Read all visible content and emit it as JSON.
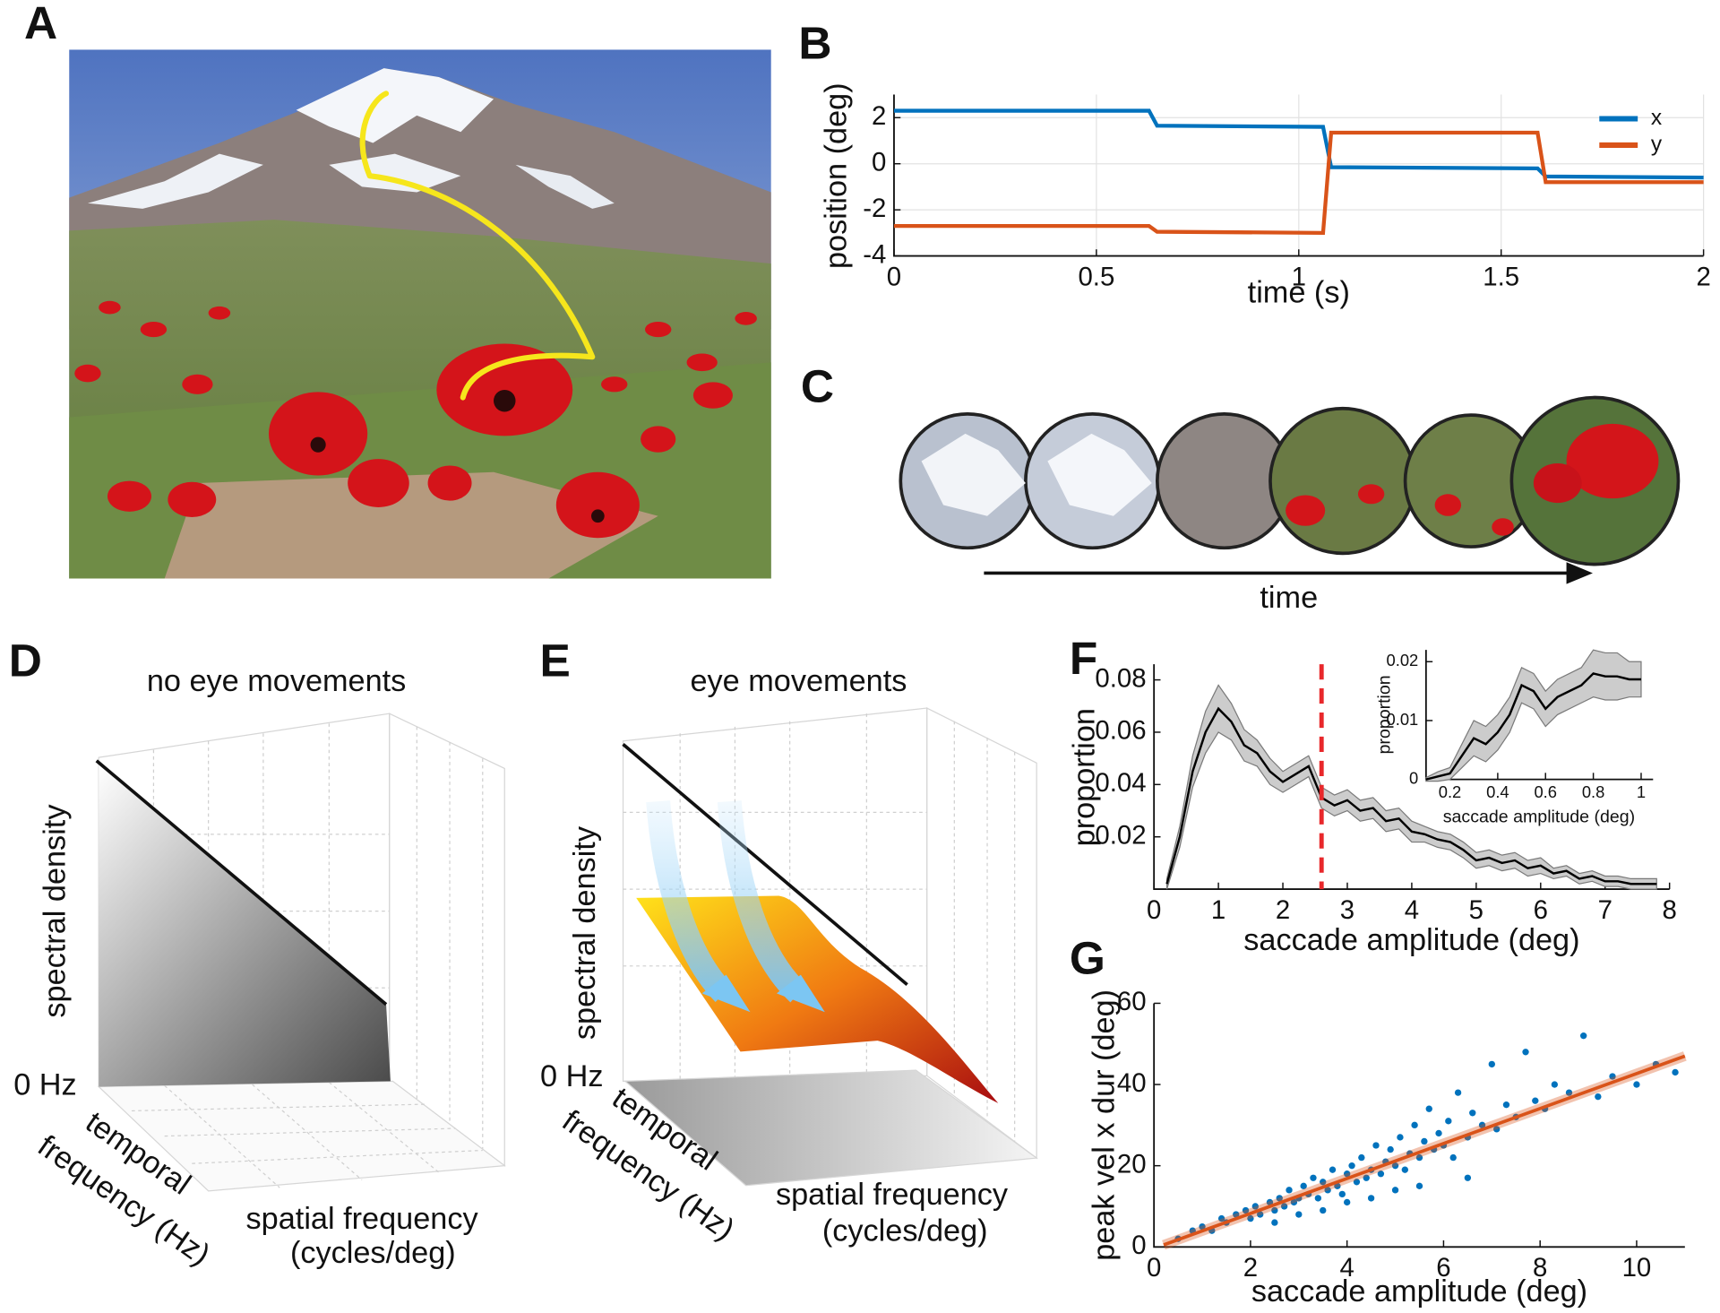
{
  "figure": {
    "panel_labels": [
      "A",
      "B",
      "C",
      "D",
      "E",
      "F",
      "G"
    ],
    "c_label": "time",
    "d": {
      "title": "no eye movements",
      "zlabel": "spectral density",
      "origin": "0 Hz",
      "ylabel": [
        "temporal",
        "frequency (Hz)"
      ],
      "xlabel": [
        "spatial frequency",
        "(cycles/deg)"
      ]
    },
    "e": {
      "title": "eye movements",
      "zlabel": "spectral density",
      "origin": "0 Hz",
      "ylabel": [
        "temporal",
        "frequency (Hz)"
      ],
      "xlabel": [
        "spatial frequency",
        "(cycles/deg)"
      ]
    }
  },
  "chart_data": [
    {
      "type": "line",
      "xlabel": "time (s)",
      "ylabel": "position (deg)",
      "x": [
        0,
        0.63,
        0.65,
        1.06,
        1.08,
        1.59,
        1.61,
        2
      ],
      "series": [
        {
          "name": "x",
          "color": "#0072bd",
          "values": [
            2.3,
            2.3,
            1.65,
            1.6,
            -0.15,
            -0.2,
            -0.55,
            -0.6
          ]
        },
        {
          "name": "y",
          "color": "#d95319",
          "values": [
            -2.7,
            -2.7,
            -2.95,
            -3.0,
            1.35,
            1.35,
            -0.8,
            -0.8
          ]
        }
      ],
      "xlim": [
        0,
        2
      ],
      "ylim": [
        -4,
        3
      ],
      "xticks": [
        0,
        0.5,
        1,
        1.5,
        2
      ],
      "yticks": [
        -4,
        -2,
        0,
        2
      ],
      "grid": true,
      "legend": "upper right"
    },
    {
      "type": "line",
      "xlabel": "saccade amplitude (deg)",
      "ylabel": "proportion",
      "x": [
        0.2,
        0.4,
        0.6,
        0.8,
        1.0,
        1.2,
        1.4,
        1.6,
        1.8,
        2.0,
        2.2,
        2.4,
        2.6,
        2.8,
        3.0,
        3.2,
        3.4,
        3.6,
        3.8,
        4.0,
        4.2,
        4.4,
        4.6,
        4.8,
        5.0,
        5.2,
        5.4,
        5.6,
        5.8,
        6.0,
        6.2,
        6.4,
        6.6,
        6.8,
        7.0,
        7.2,
        7.4,
        7.6,
        7.8
      ],
      "values": [
        0.002,
        0.02,
        0.045,
        0.06,
        0.069,
        0.064,
        0.055,
        0.052,
        0.045,
        0.041,
        0.044,
        0.047,
        0.035,
        0.032,
        0.034,
        0.03,
        0.031,
        0.026,
        0.027,
        0.022,
        0.021,
        0.019,
        0.018,
        0.015,
        0.011,
        0.012,
        0.01,
        0.011,
        0.008,
        0.009,
        0.006,
        0.007,
        0.004,
        0.005,
        0.003,
        0.003,
        0.002,
        0.002,
        0.002
      ],
      "errors": [
        0.002,
        0.004,
        0.006,
        0.008,
        0.009,
        0.007,
        0.006,
        0.005,
        0.005,
        0.004,
        0.004,
        0.004,
        0.004,
        0.004,
        0.004,
        0.004,
        0.004,
        0.004,
        0.004,
        0.004,
        0.003,
        0.003,
        0.003,
        0.003,
        0.003,
        0.003,
        0.003,
        0.003,
        0.003,
        0.003,
        0.002,
        0.002,
        0.002,
        0.002,
        0.002,
        0.002,
        0.002,
        0.002,
        0.002
      ],
      "color": "#000000",
      "band_color": "#cccccc",
      "threshold": 2.6,
      "threshold_color": "#e8282b",
      "xlim": [
        0,
        8
      ],
      "ylim": [
        0,
        0.086
      ],
      "xticks": [
        0,
        1,
        2,
        3,
        4,
        5,
        6,
        7,
        8
      ],
      "yticks": [
        0.02,
        0.04,
        0.06,
        0.08
      ]
    },
    {
      "type": "line",
      "xlabel": "saccade amplitude (deg)",
      "ylabel": "proportion",
      "x": [
        0.1,
        0.15,
        0.2,
        0.25,
        0.3,
        0.35,
        0.4,
        0.45,
        0.5,
        0.55,
        0.6,
        0.65,
        0.7,
        0.75,
        0.8,
        0.85,
        0.9,
        0.95,
        1.0
      ],
      "values": [
        0,
        0.0005,
        0.001,
        0.004,
        0.007,
        0.006,
        0.008,
        0.011,
        0.016,
        0.015,
        0.012,
        0.014,
        0.015,
        0.016,
        0.018,
        0.0175,
        0.0175,
        0.017,
        0.017
      ],
      "errors": [
        0.0003,
        0.0008,
        0.001,
        0.002,
        0.003,
        0.003,
        0.003,
        0.003,
        0.003,
        0.003,
        0.003,
        0.003,
        0.003,
        0.003,
        0.004,
        0.004,
        0.004,
        0.003,
        0.003
      ],
      "color": "#000000",
      "band_color": "#cccccc",
      "xlim": [
        0.1,
        1.05
      ],
      "ylim": [
        0,
        0.022
      ],
      "xticks": [
        0.2,
        0.4,
        0.6,
        0.8,
        1
      ],
      "yticks": [
        0,
        0.01,
        0.02
      ]
    },
    {
      "type": "scatter",
      "xlabel": "saccade amplitude (deg)",
      "ylabel": "peak vel x dur (deg)",
      "x": [
        0.5,
        0.8,
        1,
        1.2,
        1.4,
        1.5,
        1.7,
        1.9,
        2,
        2.1,
        2.2,
        2.4,
        2.5,
        2.6,
        2.7,
        2.8,
        2.9,
        3,
        3.1,
        3.2,
        3.3,
        3.4,
        3.5,
        3.6,
        3.7,
        3.8,
        3.9,
        4,
        4.1,
        4.2,
        4.3,
        4.4,
        4.5,
        4.6,
        4.7,
        4.8,
        4.9,
        5,
        5.1,
        5.2,
        5.3,
        5.4,
        5.5,
        5.6,
        5.7,
        5.8,
        5.9,
        6,
        6.1,
        6.2,
        6.3,
        6.5,
        6.6,
        6.8,
        7,
        7.1,
        7.3,
        7.5,
        7.7,
        7.9,
        8.1,
        8.3,
        8.6,
        8.9,
        9.2,
        9.5,
        10,
        10.4,
        10.8,
        3.5,
        4.5,
        5.5,
        6.5,
        2.5,
        3,
        4,
        5
      ],
      "values": [
        2,
        4,
        5,
        4,
        7,
        6,
        8,
        9,
        7,
        10,
        8,
        11,
        9,
        12,
        10,
        14,
        11,
        12,
        15,
        13,
        17,
        12,
        16,
        14,
        19,
        15,
        13,
        18,
        20,
        16,
        22,
        17,
        19,
        25,
        18,
        21,
        24,
        20,
        27,
        19,
        23,
        30,
        22,
        26,
        34,
        24,
        28,
        25,
        31,
        22,
        38,
        27,
        33,
        30,
        45,
        29,
        35,
        32,
        48,
        36,
        34,
        40,
        38,
        52,
        37,
        42,
        40,
        45,
        43,
        9,
        12,
        15,
        17,
        6,
        8,
        11,
        14
      ],
      "color": "#0072bd",
      "fit": {
        "x": [
          0.2,
          11
        ],
        "values": [
          0.5,
          47
        ],
        "color": "#d95319"
      },
      "xlim": [
        0,
        11
      ],
      "ylim": [
        0,
        60
      ],
      "xticks": [
        0,
        2,
        4,
        6,
        8,
        10
      ],
      "yticks": [
        0,
        20,
        40,
        60
      ]
    }
  ]
}
